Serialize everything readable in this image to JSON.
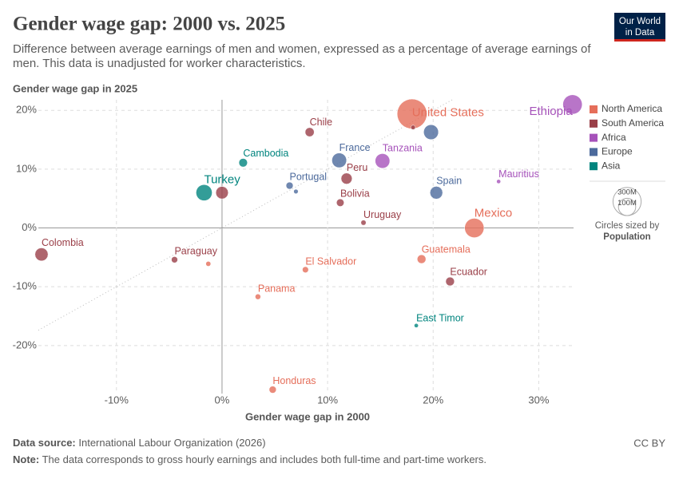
{
  "chart_data": {
    "type": "scatter",
    "title": "Gender wage gap: 2000 vs. 2025",
    "subtitle": [
      "Difference between average earnings of men and women, expressed as a percentage of average earnings of",
      "men. This data is unadjusted for worker characteristics."
    ],
    "logo": [
      "Our World",
      "in Data"
    ],
    "x_label": "Gender wage gap in 2000",
    "y_label": "Gender wage gap in 2025",
    "xlim": [
      -17.4,
      33.3
    ],
    "ylim": [
      -29.8,
      21.8
    ],
    "xticks": [
      {
        "value": -10,
        "label": "-10%"
      },
      {
        "value": 0,
        "label": "0%"
      },
      {
        "value": 10,
        "label": "10%"
      },
      {
        "value": 20,
        "label": "20%"
      },
      {
        "value": 30,
        "label": "30%"
      }
    ],
    "yticks": [
      {
        "value": -20,
        "label": "-20%"
      },
      {
        "value": -10,
        "label": "-10%"
      },
      {
        "value": 0,
        "label": "0%"
      },
      {
        "value": 10,
        "label": "10%"
      },
      {
        "value": 20,
        "label": "20%"
      }
    ],
    "grid": true,
    "legend": "right",
    "series": [
      {
        "name": "North America",
        "color": "#e56e5a",
        "labels": [
          "United States",
          "Mexico",
          "Guatemala",
          "El Salvador",
          "Panama",
          "Honduras",
          null
        ],
        "x": [
          18.0,
          23.9,
          18.9,
          7.9,
          3.4,
          4.8,
          -1.3
        ],
        "values": [
          19.4,
          0.0,
          -5.3,
          -7.1,
          -11.7,
          -27.5,
          -6.1
        ],
        "size": [
          340,
          130,
          18,
          6.3,
          4.4,
          10,
          3
        ]
      },
      {
        "name": "South America",
        "color": "#9a3f48",
        "labels": [
          "Chile",
          "Peru",
          "Bolivia",
          "Uruguay",
          "Colombia",
          "Paraguay",
          "Ecuador",
          null,
          null
        ],
        "x": [
          8.3,
          11.8,
          11.2,
          13.4,
          -17.1,
          -4.5,
          21.6,
          0.0,
          18.1
        ],
        "values": [
          16.3,
          8.4,
          4.3,
          0.9,
          -4.5,
          -5.4,
          -9.1,
          6.0,
          17.1
        ],
        "size": [
          20,
          34,
          12,
          3.4,
          52,
          6.8,
          18,
          46,
          2
        ]
      },
      {
        "name": "Africa",
        "color": "#a652ba",
        "labels": [
          "Ethiopia",
          "Tanzania",
          "Mauritius"
        ],
        "x": [
          33.2,
          15.2,
          26.2
        ],
        "values": [
          21.0,
          11.4,
          7.9
        ],
        "size": [
          130,
          68,
          1.3
        ]
      },
      {
        "name": "Europe",
        "color": "#4c6a9c",
        "labels": [
          "France",
          "Portugal",
          "Spain",
          null,
          null
        ],
        "x": [
          11.1,
          6.4,
          20.3,
          19.8,
          7.0
        ],
        "values": [
          11.5,
          7.2,
          6.0,
          16.3,
          6.2
        ],
        "size": [
          68,
          10,
          48,
          70,
          2
        ]
      },
      {
        "name": "Asia",
        "color": "#00847e",
        "labels": [
          "Cambodia",
          "Turkey",
          "East Timor"
        ],
        "x": [
          2.0,
          -1.7,
          18.4
        ],
        "values": [
          11.1,
          6.0,
          -16.6
        ],
        "size": [
          17,
          85,
          1.4
        ]
      }
    ],
    "size_legend": {
      "title": "Circles sized by",
      "variable": "Population",
      "ticks": [
        {
          "value": 300,
          "label": "300M"
        },
        {
          "value": 100,
          "label": "100M"
        }
      ]
    },
    "source_label": "Data source:",
    "source": "International Labour Organization (2026)",
    "license": "CC BY",
    "note_label": "Note:",
    "note": "The data corresponds to gross hourly earnings and includes both full-time and part-time workers."
  }
}
